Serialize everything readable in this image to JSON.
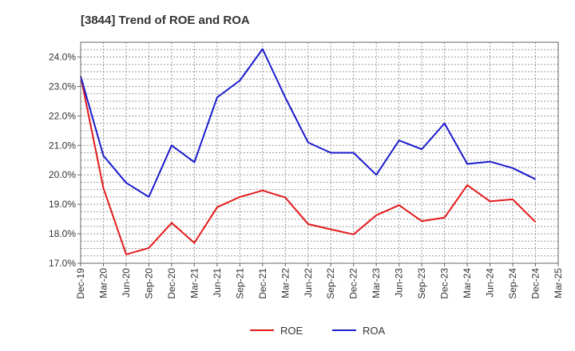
{
  "chart_data": {
    "type": "line",
    "title": "[3844]  Trend of ROE and ROA",
    "xlabel": "",
    "ylabel": "",
    "categories": [
      "Dec-19",
      "Mar-20",
      "Jun-20",
      "Sep-20",
      "Dec-20",
      "Mar-21",
      "Jun-21",
      "Sep-21",
      "Dec-21",
      "Mar-22",
      "Jun-22",
      "Sep-22",
      "Dec-22",
      "Mar-23",
      "Jun-23",
      "Sep-23",
      "Dec-23",
      "Mar-24",
      "Jun-24",
      "Sep-24",
      "Dec-24",
      "Mar-25"
    ],
    "y_tick_labels": [
      "17.0%",
      "18.0%",
      "19.0%",
      "20.0%",
      "21.0%",
      "22.0%",
      "23.0%",
      "24.0%"
    ],
    "ylim": [
      17.0,
      24.5
    ],
    "grid": true,
    "legend_position": "bottom",
    "series": [
      {
        "name": "ROE",
        "color": "#e31a1c",
        "values": [
          23.35,
          19.55,
          17.3,
          17.52,
          18.37,
          17.69,
          18.9,
          19.25,
          19.47,
          19.23,
          18.33,
          18.15,
          17.98,
          18.63,
          18.97,
          18.43,
          18.55,
          19.65,
          19.1,
          19.17,
          18.4,
          null
        ]
      },
      {
        "name": "ROA",
        "color": "#1a1acd",
        "values": [
          23.35,
          20.65,
          19.73,
          19.25,
          21.0,
          20.43,
          22.63,
          23.2,
          24.27,
          22.62,
          21.1,
          20.75,
          20.75,
          20.0,
          21.17,
          20.87,
          21.75,
          20.37,
          20.45,
          20.23,
          19.85,
          null
        ]
      }
    ]
  }
}
